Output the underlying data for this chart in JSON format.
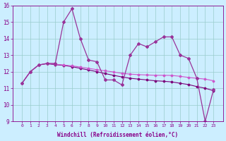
{
  "xlabel": "Windchill (Refroidissement éolien,°C)",
  "x": [
    0,
    1,
    2,
    3,
    4,
    5,
    6,
    7,
    8,
    9,
    10,
    11,
    12,
    13,
    14,
    15,
    16,
    17,
    18,
    19,
    20,
    21,
    22,
    23
  ],
  "line1": [
    11.3,
    12.0,
    12.4,
    12.5,
    12.5,
    15.0,
    15.8,
    14.0,
    12.7,
    12.6,
    11.5,
    11.5,
    11.2,
    13.0,
    13.7,
    13.5,
    13.8,
    14.1,
    14.1,
    13.0,
    12.8,
    11.6,
    9.0,
    10.9
  ],
  "line2": [
    11.3,
    12.0,
    12.4,
    12.5,
    12.45,
    12.4,
    12.35,
    12.28,
    12.2,
    12.12,
    12.05,
    11.98,
    11.9,
    11.85,
    11.82,
    11.8,
    11.78,
    11.78,
    11.77,
    11.72,
    11.65,
    11.6,
    11.55,
    11.45
  ],
  "line3": [
    11.3,
    12.0,
    12.4,
    12.48,
    12.42,
    12.38,
    12.3,
    12.2,
    12.1,
    12.0,
    11.88,
    11.78,
    11.68,
    11.6,
    11.55,
    11.5,
    11.45,
    11.42,
    11.38,
    11.3,
    11.22,
    11.1,
    11.0,
    10.85
  ],
  "line_color1": "#993399",
  "line_color2": "#cc55cc",
  "line_color3": "#7a007a",
  "bg_color": "#cceeff",
  "grid_color": "#99cccc",
  "ylim": [
    9,
    16
  ],
  "yticks": [
    9,
    10,
    11,
    12,
    13,
    14,
    15,
    16
  ],
  "xticks": [
    0,
    1,
    2,
    3,
    4,
    5,
    6,
    7,
    8,
    9,
    10,
    11,
    12,
    13,
    14,
    15,
    16,
    17,
    18,
    19,
    20,
    21,
    22,
    23
  ],
  "tick_color": "#880088",
  "label_color": "#880088"
}
